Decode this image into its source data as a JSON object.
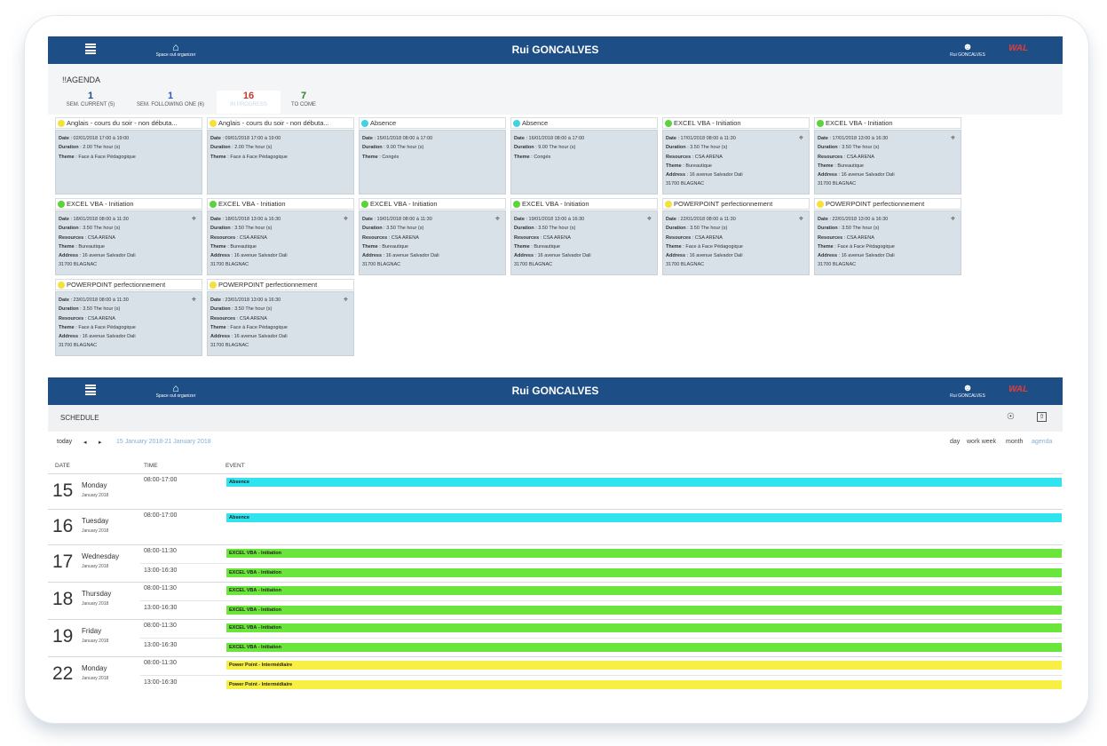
{
  "app": {
    "home_label": "Space out organizer",
    "user_name": "Rui GONCALVES",
    "user_short": "Rui GONCALVES",
    "logo_text": "WAL"
  },
  "agenda": {
    "title": "!!AGENDA",
    "tabs": [
      {
        "num": "1",
        "label": "SEM. CURRENT (5)",
        "color": "#1d4f86"
      },
      {
        "num": "1",
        "label": "SEM. FOLLOWING ONE (6)",
        "color": "#2f59c8"
      },
      {
        "num": "16",
        "label": "IN PROGRESS",
        "color": "#c0392b"
      },
      {
        "num": "7",
        "label": "TO COME",
        "color": "#2e7d32"
      }
    ],
    "cards": [
      {
        "title": "Anglais - cours du soir - non débuta...",
        "dot": "#f4e13a",
        "lines": [
          [
            "Date",
            "02/01/2018 17:00 à 19:00"
          ],
          [
            "Duration",
            "2.00 The hour (s)"
          ],
          [
            "Theme",
            "Face à Face Pédagogique"
          ]
        ],
        "pin": false
      },
      {
        "title": "Anglais - cours du soir - non débuta...",
        "dot": "#f4e13a",
        "lines": [
          [
            "Date",
            "09/01/2018 17:00 à 19:00"
          ],
          [
            "Duration",
            "2.00 The hour (s)"
          ],
          [
            "Theme",
            "Face à Face Pédagogique"
          ]
        ],
        "pin": false
      },
      {
        "title": "Absence",
        "dot": "#3fd2e0",
        "lines": [
          [
            "Date",
            "15/01/2018 08:00 à 17:00"
          ],
          [
            "Duration",
            "9.00 The hour (s)"
          ],
          [
            "Theme",
            "Congés"
          ]
        ],
        "pin": false
      },
      {
        "title": "Absence",
        "dot": "#3fd2e0",
        "lines": [
          [
            "Date",
            "16/01/2018 08:00 à 17:00"
          ],
          [
            "Duration",
            "9.00 The hour (s)"
          ],
          [
            "Theme",
            "Congés"
          ]
        ],
        "pin": false
      },
      {
        "title": "EXCEL VBA - Initiation",
        "dot": "#5bd33a",
        "lines": [
          [
            "Date",
            "17/01/2018 08:00 à 11:30"
          ],
          [
            "Duration",
            "3.50 The hour (s)"
          ],
          [
            "Resources",
            "CSA ARENA"
          ],
          [
            "Theme",
            "Bureautique"
          ],
          [
            "Address",
            "16 avenue Salvador Dali"
          ],
          [
            "",
            "31700 BLAGNAC"
          ]
        ],
        "pin": true
      },
      {
        "title": "EXCEL VBA - Initiation",
        "dot": "#5bd33a",
        "lines": [
          [
            "Date",
            "17/01/2018 13:00 à 16:30"
          ],
          [
            "Duration",
            "3.50 The hour (s)"
          ],
          [
            "Resources",
            "CSA ARENA"
          ],
          [
            "Theme",
            "Bureautique"
          ],
          [
            "Address",
            "16 avenue Salvador Dali"
          ],
          [
            "",
            "31700 BLAGNAC"
          ]
        ],
        "pin": true
      },
      {
        "title": "EXCEL VBA - Initiation",
        "dot": "#5bd33a",
        "lines": [
          [
            "Date",
            "18/01/2018 08:00 à 11:30"
          ],
          [
            "Duration",
            "3.50 The hour (s)"
          ],
          [
            "Resources",
            "CSA ARENA"
          ],
          [
            "Theme",
            "Bureautique"
          ],
          [
            "Address",
            "16 avenue Salvador Dali"
          ],
          [
            "",
            "31700 BLAGNAC"
          ]
        ],
        "pin": true
      },
      {
        "title": "EXCEL VBA - Initiation",
        "dot": "#5bd33a",
        "lines": [
          [
            "Date",
            "18/01/2018 13:00 à 16:30"
          ],
          [
            "Duration",
            "3.50 The hour (s)"
          ],
          [
            "Resources",
            "CSA ARENA"
          ],
          [
            "Theme",
            "Bureautique"
          ],
          [
            "Address",
            "16 avenue Salvador Dali"
          ],
          [
            "",
            "31700 BLAGNAC"
          ]
        ],
        "pin": true
      },
      {
        "title": "EXCEL VBA - Initiation",
        "dot": "#5bd33a",
        "lines": [
          [
            "Date",
            "19/01/2018 08:00 à 11:30"
          ],
          [
            "Duration",
            "3.50 The hour (s)"
          ],
          [
            "Resources",
            "CSA ARENA"
          ],
          [
            "Theme",
            "Bureautique"
          ],
          [
            "Address",
            "16 avenue Salvador Dali"
          ],
          [
            "",
            "31700 BLAGNAC"
          ]
        ],
        "pin": true
      },
      {
        "title": "EXCEL VBA - Initiation",
        "dot": "#5bd33a",
        "lines": [
          [
            "Date",
            "19/01/2018 13:00 à 16:30"
          ],
          [
            "Duration",
            "3.50 The hour (s)"
          ],
          [
            "Resources",
            "CSA ARENA"
          ],
          [
            "Theme",
            "Bureautique"
          ],
          [
            "Address",
            "16 avenue Salvador Dali"
          ],
          [
            "",
            "31700 BLAGNAC"
          ]
        ],
        "pin": true
      },
      {
        "title": "POWERPOINT perfectionnement",
        "dot": "#f4e13a",
        "lines": [
          [
            "Date",
            "22/01/2018 08:00 à 11:30"
          ],
          [
            "Duration",
            "3.50 The hour (s)"
          ],
          [
            "Resources",
            "CSA ARENA"
          ],
          [
            "Theme",
            "Face à Face Pédagogique"
          ],
          [
            "Address",
            "16 avenue Salvador Dali"
          ],
          [
            "",
            "31700 BLAGNAC"
          ]
        ],
        "pin": true
      },
      {
        "title": "POWERPOINT perfectionnement",
        "dot": "#f4e13a",
        "lines": [
          [
            "Date",
            "22/01/2018 13:00 à 16:30"
          ],
          [
            "Duration",
            "3.50 The hour (s)"
          ],
          [
            "Resources",
            "CSA ARENA"
          ],
          [
            "Theme",
            "Face à Face Pédagogique"
          ],
          [
            "Address",
            "16 avenue Salvador Dali"
          ],
          [
            "",
            "31700 BLAGNAC"
          ]
        ],
        "pin": true
      },
      {
        "title": "POWERPOINT perfectionnement",
        "dot": "#f4e13a",
        "lines": [
          [
            "Date",
            "23/01/2018 08:00 à 11:30"
          ],
          [
            "Duration",
            "3.50 The hour (s)"
          ],
          [
            "Resources",
            "CSA ARENA"
          ],
          [
            "Theme",
            "Face à Face Pédagogique"
          ],
          [
            "Address",
            "16 avenue Salvador Dali"
          ],
          [
            "",
            "31700 BLAGNAC"
          ]
        ],
        "pin": true
      },
      {
        "title": "POWERPOINT perfectionnement",
        "dot": "#f4e13a",
        "lines": [
          [
            "Date",
            "23/01/2018 13:00 à 16:30"
          ],
          [
            "Duration",
            "3.50 The hour (s)"
          ],
          [
            "Resources",
            "CSA ARENA"
          ],
          [
            "Theme",
            "Face à Face Pédagogique"
          ],
          [
            "Address",
            "16 avenue Salvador Dali"
          ],
          [
            "",
            "31700 BLAGNAC"
          ]
        ],
        "pin": true
      }
    ]
  },
  "schedule": {
    "title": "SCHEDULE",
    "today_label": "today",
    "prev_label": "◂",
    "next_label": "▸",
    "range_label": "15 January 2018-21 January 2018",
    "views": [
      "day",
      "work week",
      "month",
      "agenda"
    ],
    "active_view_color": "#7fb0d8",
    "columns": [
      "DATE",
      "TIME",
      "EVENT"
    ],
    "days": [
      {
        "num": "15",
        "weekday": "Monday",
        "month": "January 2018",
        "slots": [
          {
            "time": "08:00-17:00",
            "event": "Absence",
            "color": "#2fe3ef"
          }
        ]
      },
      {
        "num": "16",
        "weekday": "Tuesday",
        "month": "January 2018",
        "slots": [
          {
            "time": "08:00-17:00",
            "event": "Absence",
            "color": "#2fe3ef"
          }
        ]
      },
      {
        "num": "17",
        "weekday": "Wednesday",
        "month": "January 2018",
        "slots": [
          {
            "time": "08:00-11:30",
            "event": "EXCEL VBA - Initiation",
            "color": "#6ae63a"
          },
          {
            "time": "13:00-16:30",
            "event": "EXCEL VBA - Initiation",
            "color": "#6ae63a"
          }
        ]
      },
      {
        "num": "18",
        "weekday": "Thursday",
        "month": "January 2018",
        "slots": [
          {
            "time": "08:00-11:30",
            "event": "EXCEL VBA - Initiation",
            "color": "#6ae63a"
          },
          {
            "time": "13:00-16:30",
            "event": "EXCEL VBA - Initiation",
            "color": "#6ae63a"
          }
        ]
      },
      {
        "num": "19",
        "weekday": "Friday",
        "month": "January 2018",
        "slots": [
          {
            "time": "08:00-11:30",
            "event": "EXCEL VBA - Initiation",
            "color": "#6ae63a"
          },
          {
            "time": "13:00-16:30",
            "event": "EXCEL VBA - Initiation",
            "color": "#6ae63a"
          }
        ]
      },
      {
        "num": "22",
        "weekday": "Monday",
        "month": "January 2018",
        "slots": [
          {
            "time": "08:00-11:30",
            "event": "Power Point - Intermédiaire",
            "color": "#f7ef44"
          },
          {
            "time": "13:00-16:30",
            "event": "Power Point - Intermédiaire",
            "color": "#f7ef44"
          }
        ]
      }
    ]
  }
}
